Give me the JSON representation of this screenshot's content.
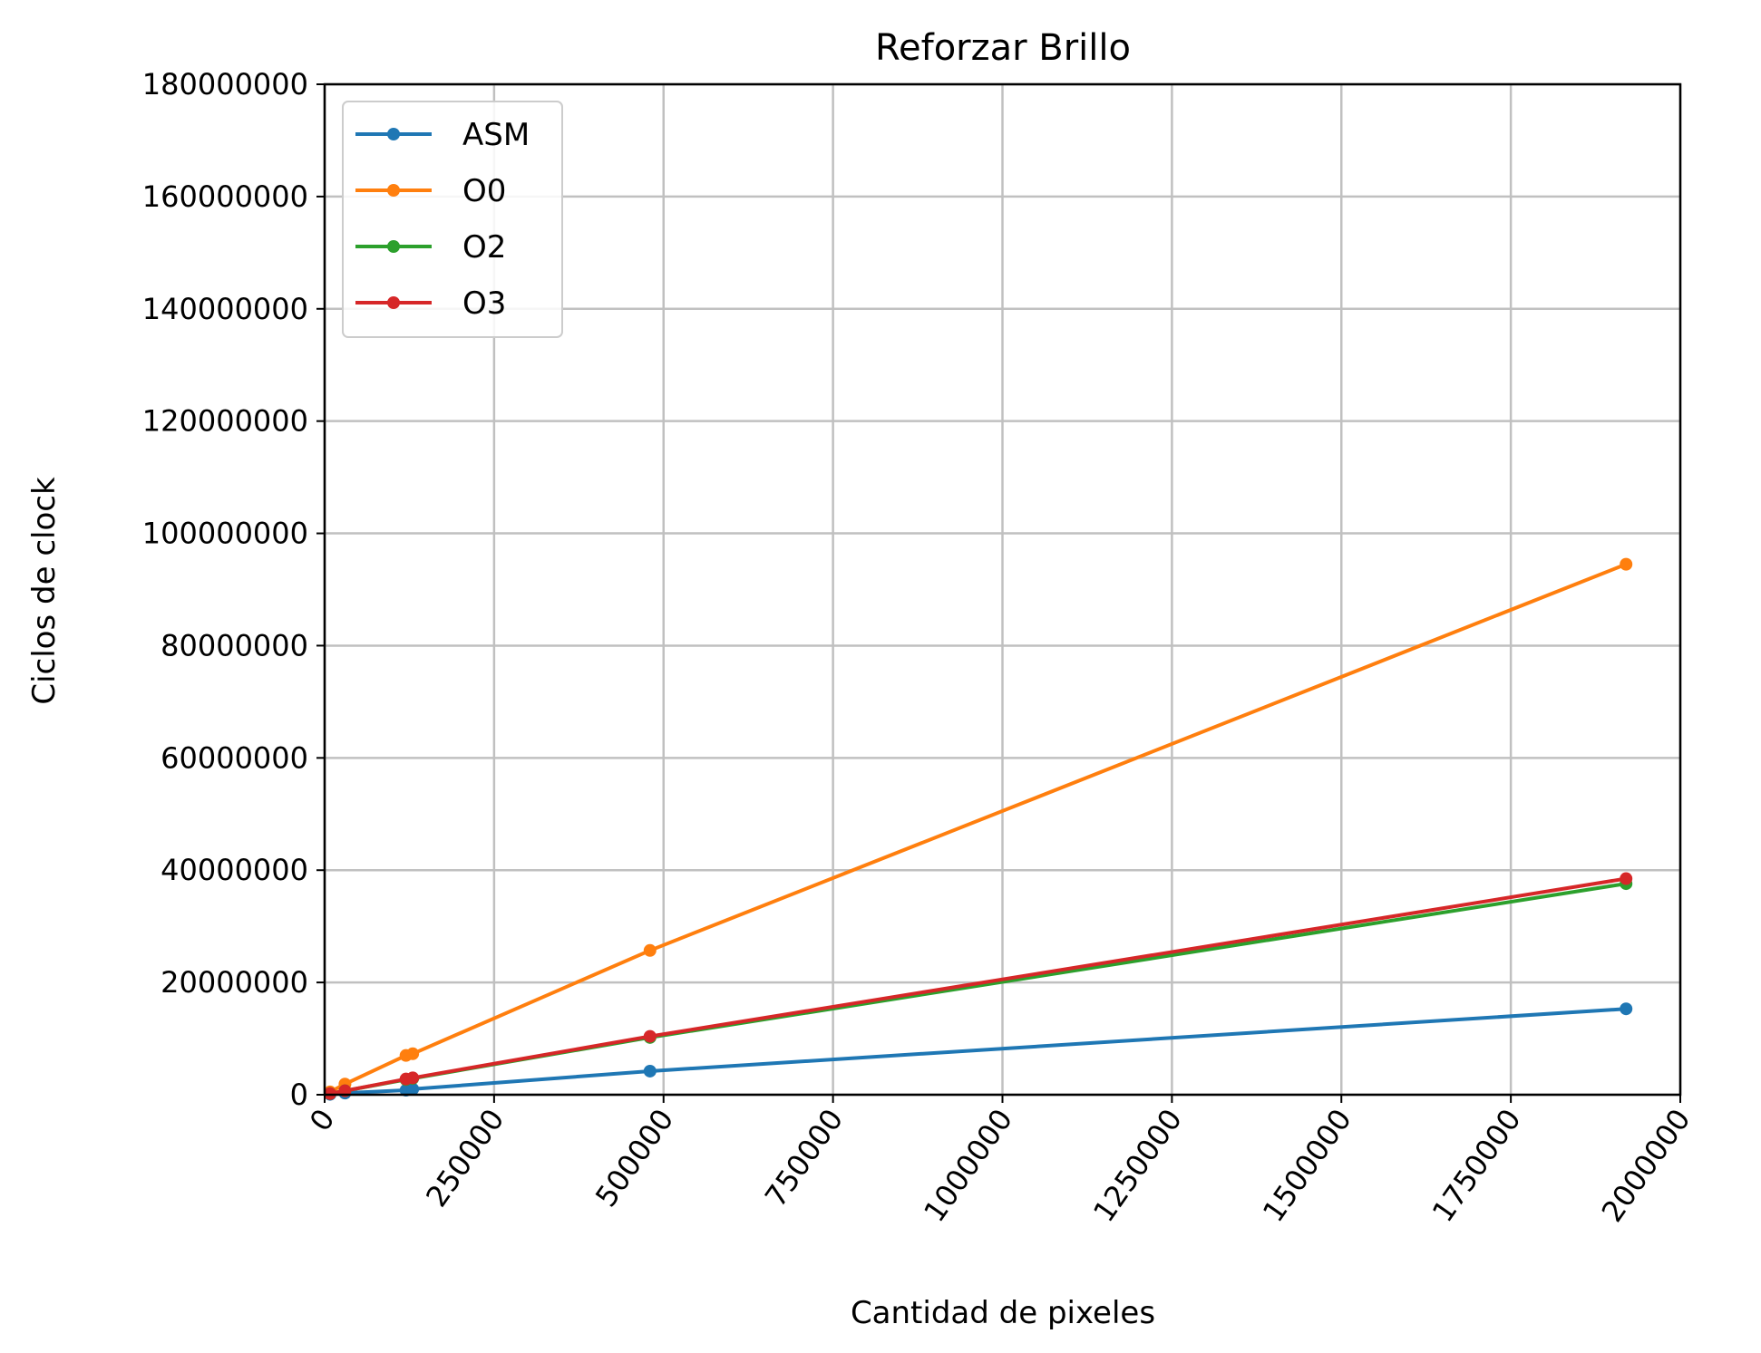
{
  "chart_data": {
    "type": "line",
    "title": "Reforzar Brillo",
    "xlabel": "Cantidad de pixeles",
    "ylabel": "Ciclos de clock",
    "xlim": [
      0,
      2000000
    ],
    "ylim": [
      0,
      180000000
    ],
    "x_ticks": [
      "0",
      "250000",
      "500000",
      "750000",
      "1000000",
      "1250000",
      "1500000",
      "1750000",
      "2000000"
    ],
    "x_tick_values": [
      0,
      250000,
      500000,
      750000,
      1000000,
      1250000,
      1500000,
      1750000,
      2000000
    ],
    "y_ticks": [
      "0",
      "20000000",
      "40000000",
      "60000000",
      "80000000",
      "100000000",
      "120000000",
      "140000000",
      "160000000",
      "180000000"
    ],
    "y_tick_values": [
      0,
      20000000,
      40000000,
      60000000,
      80000000,
      100000000,
      120000000,
      140000000,
      160000000,
      180000000
    ],
    "grid": true,
    "legend_position": "top-left",
    "series": [
      {
        "name": "ASM",
        "color": "#1f77b4",
        "points": [
          [
            8000,
            70000
          ],
          [
            30000,
            300000
          ],
          [
            120000,
            800000
          ],
          [
            130000,
            1000000
          ],
          [
            480000,
            4200000
          ],
          [
            1920000,
            15300000
          ]
        ]
      },
      {
        "name": "O0",
        "color": "#ff7f0e",
        "points": [
          [
            8000,
            500000
          ],
          [
            30000,
            1900000
          ],
          [
            120000,
            7000000
          ],
          [
            130000,
            7300000
          ],
          [
            480000,
            25700000
          ],
          [
            1920000,
            94500000
          ]
        ]
      },
      {
        "name": "O2",
        "color": "#2ca02c",
        "points": [
          [
            8000,
            200000
          ],
          [
            30000,
            700000
          ],
          [
            120000,
            2700000
          ],
          [
            130000,
            2900000
          ],
          [
            480000,
            10200000
          ],
          [
            1920000,
            37600000
          ]
        ]
      },
      {
        "name": "O3",
        "color": "#d62728",
        "points": [
          [
            8000,
            200000
          ],
          [
            30000,
            700000
          ],
          [
            120000,
            2800000
          ],
          [
            130000,
            3000000
          ],
          [
            480000,
            10400000
          ],
          [
            1920000,
            38500000
          ]
        ]
      }
    ]
  }
}
